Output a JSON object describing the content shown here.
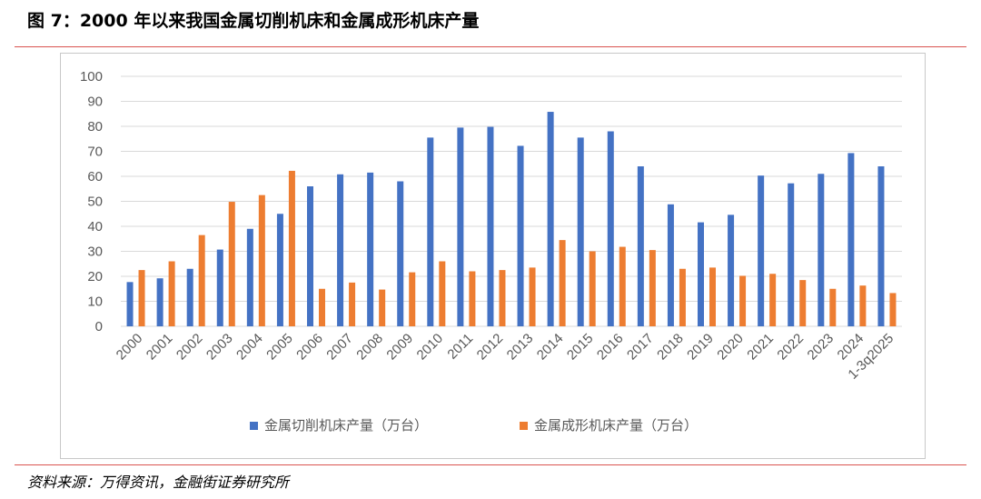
{
  "figure_title": "图 7：2000 年以来我国金属切削机床和金属成形机床产量",
  "source": "资料来源：万得资讯，金融街证券研究所",
  "colors": {
    "series1": "#4472c4",
    "series2": "#ed7d31",
    "grid": "#d9d9d9",
    "axis_text": "#595959",
    "rule": "#d9534f"
  },
  "chart_data": {
    "type": "bar",
    "title": "",
    "xlabel": "",
    "ylabel": "",
    "ylim": [
      0,
      100
    ],
    "yticks": [
      0,
      10,
      20,
      30,
      40,
      50,
      60,
      70,
      80,
      90,
      100
    ],
    "grid": true,
    "legend_position": "bottom",
    "categories": [
      "2000",
      "2001",
      "2002",
      "2003",
      "2004",
      "2005",
      "2006",
      "2007",
      "2008",
      "2009",
      "2010",
      "2011",
      "2012",
      "2013",
      "2014",
      "2015",
      "2016",
      "2017",
      "2018",
      "2019",
      "2020",
      "2021",
      "2022",
      "2023",
      "2024",
      "1-3q2025"
    ],
    "series": [
      {
        "name": "金属切削机床产量（万台）",
        "color": "#4472c4",
        "values": [
          17.7,
          19.2,
          23.0,
          30.7,
          39.0,
          45.0,
          56.0,
          60.8,
          61.5,
          58.0,
          75.5,
          79.5,
          79.8,
          72.2,
          85.8,
          75.5,
          78.0,
          64.0,
          48.8,
          41.6,
          44.6,
          60.3,
          57.2,
          61.0,
          69.3,
          64.0
        ]
      },
      {
        "name": "金属成形机床产量（万台）",
        "color": "#ed7d31",
        "values": [
          22.5,
          26.0,
          36.5,
          49.8,
          52.5,
          62.2,
          15.0,
          17.5,
          14.7,
          21.6,
          26.0,
          22.0,
          22.5,
          23.5,
          34.5,
          30.0,
          31.8,
          30.5,
          23.0,
          23.5,
          20.2,
          21.0,
          18.5,
          15.0,
          16.3,
          13.3
        ]
      }
    ]
  }
}
